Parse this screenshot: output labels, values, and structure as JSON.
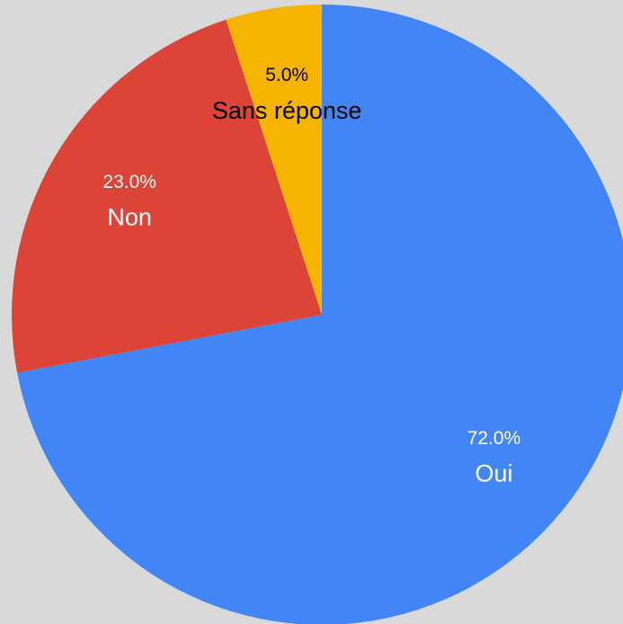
{
  "chart_data": {
    "type": "pie",
    "categories": [
      "Oui",
      "Non",
      "Sans réponse"
    ],
    "values": [
      72,
      23,
      5
    ],
    "value_labels": [
      "72.0%",
      "23.0%",
      "5.0%"
    ],
    "colors": [
      "#4285f4",
      "#db4437",
      "#f4b400"
    ],
    "label_colors": [
      "#ffffff",
      "#ffffff",
      "#000000"
    ]
  }
}
